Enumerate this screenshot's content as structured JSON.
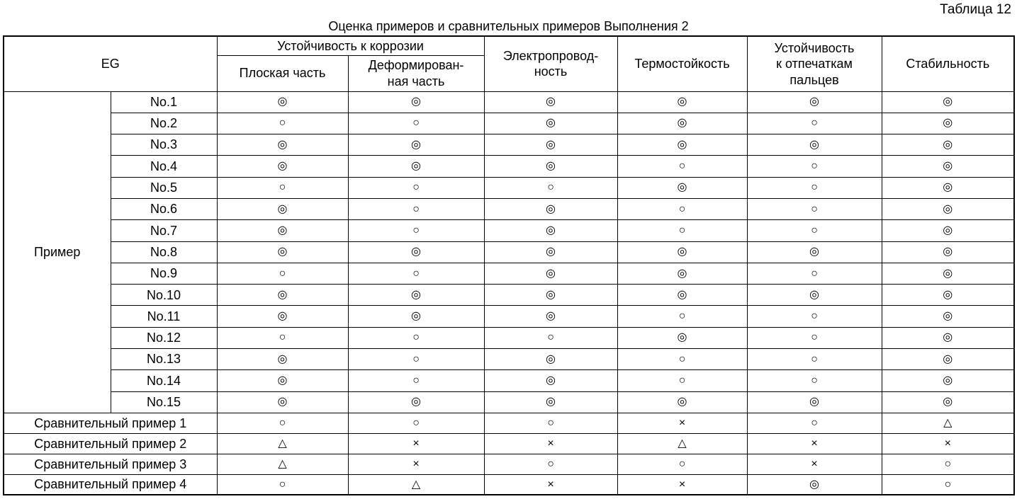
{
  "page": {
    "table_label": "Таблица 12",
    "title": "Оценка примеров и сравнительных примеров Выполнения 2"
  },
  "table": {
    "header": {
      "eg": "EG",
      "corrosion": "Устойчивость к коррозии",
      "flat": "Плоская часть",
      "deformed": "Деформирован-\nная часть",
      "conductivity": "Электропровод-\nность",
      "heat": "Термостойкость",
      "fingerprint": "Устойчивость\nк отпечаткам\nпальцев",
      "stability": "Стабильность"
    },
    "example_group": {
      "label": "Пример",
      "rows": [
        {
          "label": "No.1",
          "values": [
            "◎",
            "◎",
            "◎",
            "◎",
            "◎",
            "◎"
          ]
        },
        {
          "label": "No.2",
          "values": [
            "○",
            "○",
            "◎",
            "◎",
            "○",
            "◎"
          ]
        },
        {
          "label": "No.3",
          "values": [
            "◎",
            "◎",
            "◎",
            "◎",
            "◎",
            "◎"
          ]
        },
        {
          "label": "No.4",
          "values": [
            "◎",
            "◎",
            "◎",
            "○",
            "○",
            "◎"
          ]
        },
        {
          "label": "No.5",
          "values": [
            "○",
            "○",
            "○",
            "◎",
            "○",
            "◎"
          ]
        },
        {
          "label": "No.6",
          "values": [
            "◎",
            "○",
            "◎",
            "○",
            "○",
            "◎"
          ]
        },
        {
          "label": "No.7",
          "values": [
            "◎",
            "○",
            "◎",
            "○",
            "○",
            "◎"
          ]
        },
        {
          "label": "No.8",
          "values": [
            "◎",
            "◎",
            "◎",
            "◎",
            "◎",
            "◎"
          ]
        },
        {
          "label": "No.9",
          "values": [
            "○",
            "○",
            "◎",
            "◎",
            "○",
            "◎"
          ]
        },
        {
          "label": "No.10",
          "values": [
            "◎",
            "◎",
            "◎",
            "◎",
            "◎",
            "◎"
          ]
        },
        {
          "label": "No.11",
          "values": [
            "◎",
            "◎",
            "◎",
            "○",
            "○",
            "◎"
          ]
        },
        {
          "label": "No.12",
          "values": [
            "○",
            "○",
            "○",
            "◎",
            "○",
            "◎"
          ]
        },
        {
          "label": "No.13",
          "values": [
            "◎",
            "○",
            "◎",
            "○",
            "○",
            "◎"
          ]
        },
        {
          "label": "No.14",
          "values": [
            "◎",
            "○",
            "◎",
            "○",
            "○",
            "◎"
          ]
        },
        {
          "label": "No.15",
          "values": [
            "◎",
            "◎",
            "◎",
            "◎",
            "◎",
            "◎"
          ]
        }
      ]
    },
    "comparative_rows": [
      {
        "label": "Сравнительный пример 1",
        "values": [
          "○",
          "○",
          "○",
          "×",
          "○",
          "△"
        ]
      },
      {
        "label": "Сравнительный пример 2",
        "values": [
          "△",
          "×",
          "×",
          "△",
          "×",
          "×"
        ]
      },
      {
        "label": "Сравнительный пример 3",
        "values": [
          "△",
          "×",
          "○",
          "○",
          "×",
          "○"
        ]
      },
      {
        "label": "Сравнительный пример 4",
        "values": [
          "○",
          "△",
          "×",
          "×",
          "◎",
          "○"
        ]
      }
    ]
  }
}
